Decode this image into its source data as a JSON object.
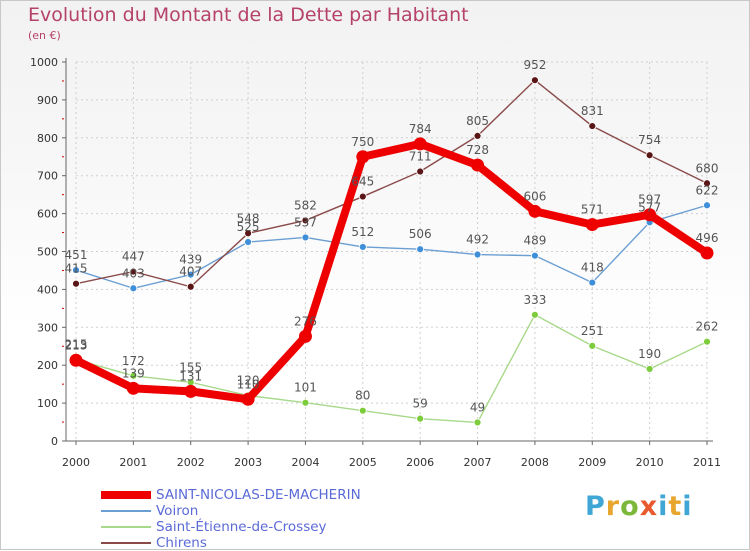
{
  "title": "Evolution du Montant de la Dette par Habitant",
  "unit": "(en €)",
  "logo": "Proxiti",
  "colors": {
    "title": "#b5426b",
    "legend_text": "#5a6ad6",
    "axis": "#666666",
    "grid": "#cfcfcf"
  },
  "chart_data": {
    "type": "line",
    "title": "Evolution du Montant de la Dette par Habitant",
    "ylabel": "(en €)",
    "xlabel": "",
    "x": [
      "2000",
      "2001",
      "2002",
      "2003",
      "2004",
      "2005",
      "2006",
      "2007",
      "2008",
      "2009",
      "2010",
      "2011"
    ],
    "ylim": [
      0,
      1000
    ],
    "yticks": [
      0,
      100,
      200,
      300,
      400,
      500,
      600,
      700,
      800,
      900,
      1000
    ],
    "grid": true,
    "legend_position": "bottom-left",
    "series": [
      {
        "name": "SAINT-NICOLAS-DE-MACHERIN",
        "color": "#ee0000",
        "marker": "#ee0000",
        "width": "thick",
        "values": [
          213,
          139,
          131,
          110,
          276,
          750,
          784,
          728,
          606,
          571,
          597,
          496
        ]
      },
      {
        "name": "Voiron",
        "color": "#6b9ed2",
        "marker": "#3f8fd8",
        "width": "thin",
        "values": [
          451,
          403,
          439,
          525,
          537,
          512,
          506,
          492,
          489,
          418,
          577,
          622
        ]
      },
      {
        "name": "Saint-Étienne-de-Crossey",
        "color": "#a8d88a",
        "marker": "#7ccc3c",
        "width": "thin",
        "values": [
          215,
          172,
          155,
          120,
          101,
          80,
          59,
          49,
          333,
          251,
          190,
          262
        ]
      },
      {
        "name": "Chirens",
        "color": "#8a4a4a",
        "marker": "#5a1616",
        "width": "thin",
        "values": [
          415,
          447,
          407,
          548,
          582,
          645,
          711,
          805,
          952,
          831,
          754,
          680
        ]
      }
    ]
  }
}
